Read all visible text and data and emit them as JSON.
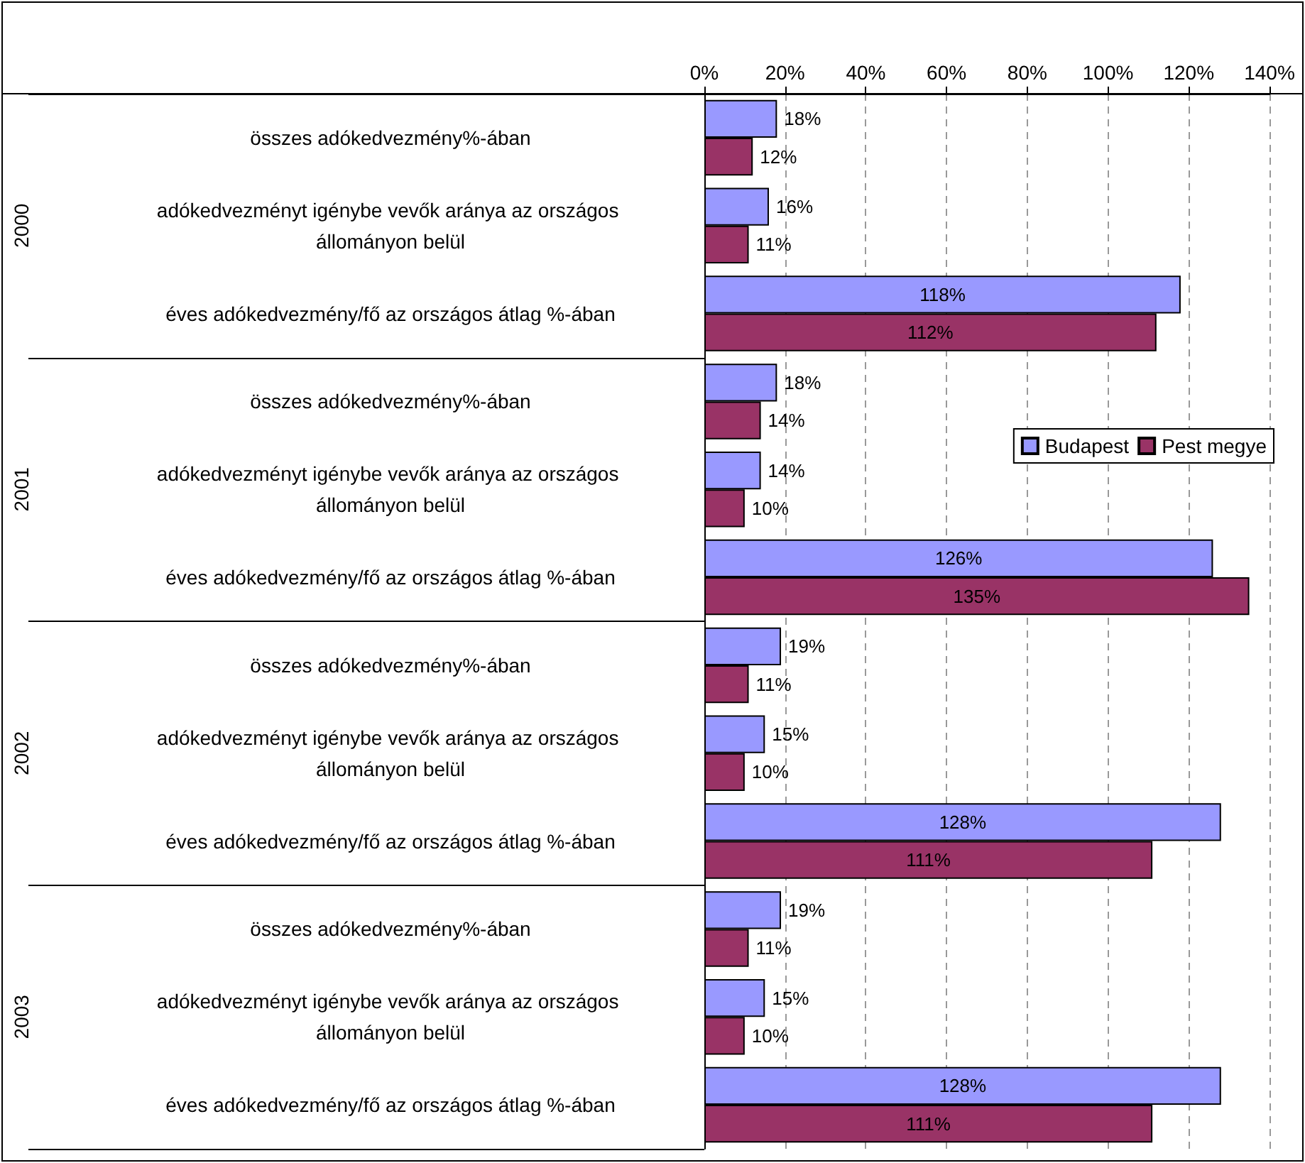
{
  "chart_data": {
    "type": "bar",
    "orientation": "horizontal",
    "categories": [
      "összes adókedvezmény%-ában",
      "adókedvezményt igénybe vevők aránya az országos állományon belül",
      "éves adókedvezmény/fő az országos átlag %-ában",
      "összes adókedvezmény%-ában",
      "adókedvezményt igénybe vevők aránya az országos állományon belül",
      "éves adókedvezmény/fő az országos átlag %-ában",
      "összes adókedvezmény%-ában",
      "adókedvezményt igénybe vevők aránya az országos állományon belül",
      "éves adókedvezmény/fő az országos átlag %-ában",
      "összes adókedvezmény%-ában",
      "adókedvezményt igénybe vevők aránya az országos állományon belül",
      "éves adókedvezmény/fő az országos átlag %-ában"
    ],
    "series": [
      {
        "name": "Budapest",
        "color": "#9999ff",
        "values": [
          18,
          16,
          118,
          18,
          14,
          126,
          19,
          15,
          128,
          19,
          15,
          128
        ],
        "value_labels": [
          "18%",
          "16%",
          "118%",
          "18%",
          "14%",
          "126%",
          "19%",
          "15%",
          "128%",
          "19%",
          "15%",
          "128%"
        ]
      },
      {
        "name": "Pest megye",
        "color": "#993366",
        "values": [
          12,
          11,
          112,
          14,
          10,
          135,
          11,
          10,
          111,
          11,
          10,
          111
        ],
        "value_labels": [
          "12%",
          "11%",
          "112%",
          "14%",
          "10%",
          "135%",
          "11%",
          "10%",
          "111%",
          "11%",
          "10%",
          "111%"
        ]
      }
    ],
    "xlim": [
      0,
      140
    ],
    "xticks": [
      {
        "value": 0,
        "label": "0%"
      },
      {
        "value": 20,
        "label": "20%"
      },
      {
        "value": 40,
        "label": "40%"
      },
      {
        "value": 60,
        "label": "60%"
      },
      {
        "value": 80,
        "label": "80%"
      },
      {
        "value": 100,
        "label": "100%"
      },
      {
        "value": 120,
        "label": "120%"
      },
      {
        "value": 140,
        "label": "140%"
      }
    ],
    "annotations": [
      "2000",
      "2001",
      "2002",
      "2003"
    ],
    "grid": "x",
    "legend": "right"
  }
}
